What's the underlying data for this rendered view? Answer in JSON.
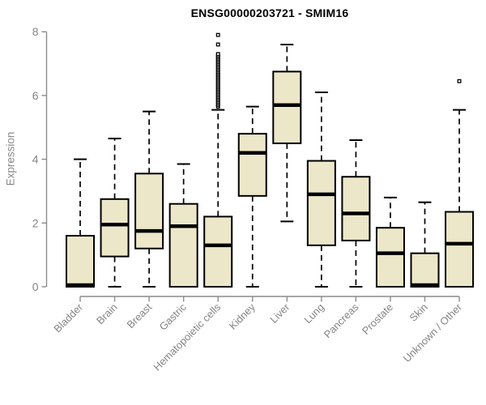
{
  "chart_data": {
    "type": "boxplot",
    "title": "ENSG00000203721 - SMIM16",
    "ylabel": "Expression",
    "xlabel": "",
    "ylim": [
      0,
      8
    ],
    "yticks": [
      0,
      2,
      4,
      6,
      8
    ],
    "grid": false,
    "legend": null,
    "categories": [
      "Bladder",
      "Brain",
      "Breast",
      "Gastric",
      "Hematopoietic cells",
      "Kidney",
      "Liver",
      "Lung",
      "Pancreas",
      "Prostate",
      "Skin",
      "Unknown / Other"
    ],
    "series": [
      {
        "name": "Bladder",
        "whisker_low": 0,
        "q1": 0,
        "median": 0.05,
        "q3": 1.6,
        "whisker_high": 4.0,
        "outliers": []
      },
      {
        "name": "Brain",
        "whisker_low": 0,
        "q1": 0.95,
        "median": 1.95,
        "q3": 2.75,
        "whisker_high": 4.65,
        "outliers": []
      },
      {
        "name": "Breast",
        "whisker_low": 0,
        "q1": 1.2,
        "median": 1.75,
        "q3": 3.55,
        "whisker_high": 5.5,
        "outliers": []
      },
      {
        "name": "Gastric",
        "whisker_low": 0,
        "q1": 0,
        "median": 1.9,
        "q3": 2.6,
        "whisker_high": 3.85,
        "outliers": []
      },
      {
        "name": "Hematopoietic cells",
        "whisker_low": 0,
        "q1": 0,
        "median": 1.3,
        "q3": 2.2,
        "whisker_high": 5.55,
        "outliers": [
          5.65,
          5.7,
          5.75,
          5.8,
          5.85,
          5.9,
          5.95,
          6.0,
          6.05,
          6.1,
          6.15,
          6.2,
          6.25,
          6.3,
          6.35,
          6.4,
          6.45,
          6.5,
          6.55,
          6.6,
          6.65,
          6.7,
          6.75,
          6.8,
          6.85,
          6.9,
          6.95,
          7.0,
          7.05,
          7.1,
          7.15,
          7.2,
          7.25,
          7.3,
          7.6,
          7.9
        ]
      },
      {
        "name": "Kidney",
        "whisker_low": 0,
        "q1": 2.85,
        "median": 4.2,
        "q3": 4.8,
        "whisker_high": 5.65,
        "outliers": []
      },
      {
        "name": "Liver",
        "whisker_low": 2.05,
        "q1": 4.5,
        "median": 5.7,
        "q3": 6.75,
        "whisker_high": 7.6,
        "outliers": []
      },
      {
        "name": "Lung",
        "whisker_low": 0,
        "q1": 1.3,
        "median": 2.9,
        "q3": 3.95,
        "whisker_high": 6.1,
        "outliers": []
      },
      {
        "name": "Pancreas",
        "whisker_low": 0,
        "q1": 1.45,
        "median": 2.3,
        "q3": 3.45,
        "whisker_high": 4.6,
        "outliers": []
      },
      {
        "name": "Prostate",
        "whisker_low": 0,
        "q1": 0,
        "median": 1.05,
        "q3": 1.85,
        "whisker_high": 2.8,
        "outliers": []
      },
      {
        "name": "Skin",
        "whisker_low": 0,
        "q1": 0,
        "median": 0.05,
        "q3": 1.05,
        "whisker_high": 2.65,
        "outliers": []
      },
      {
        "name": "Unknown / Other",
        "whisker_low": 0,
        "q1": 0,
        "median": 1.35,
        "q3": 2.35,
        "whisker_high": 5.55,
        "outliers": [
          6.45
        ]
      }
    ],
    "colors": {
      "box_fill": "#EDE7C9",
      "box_stroke": "#000000",
      "median_stroke": "#000000",
      "whisker_stroke": "#000000",
      "axis": "#8c8c8c",
      "tick_label": "#848484",
      "title": "#000000",
      "background": "#ffffff"
    }
  }
}
